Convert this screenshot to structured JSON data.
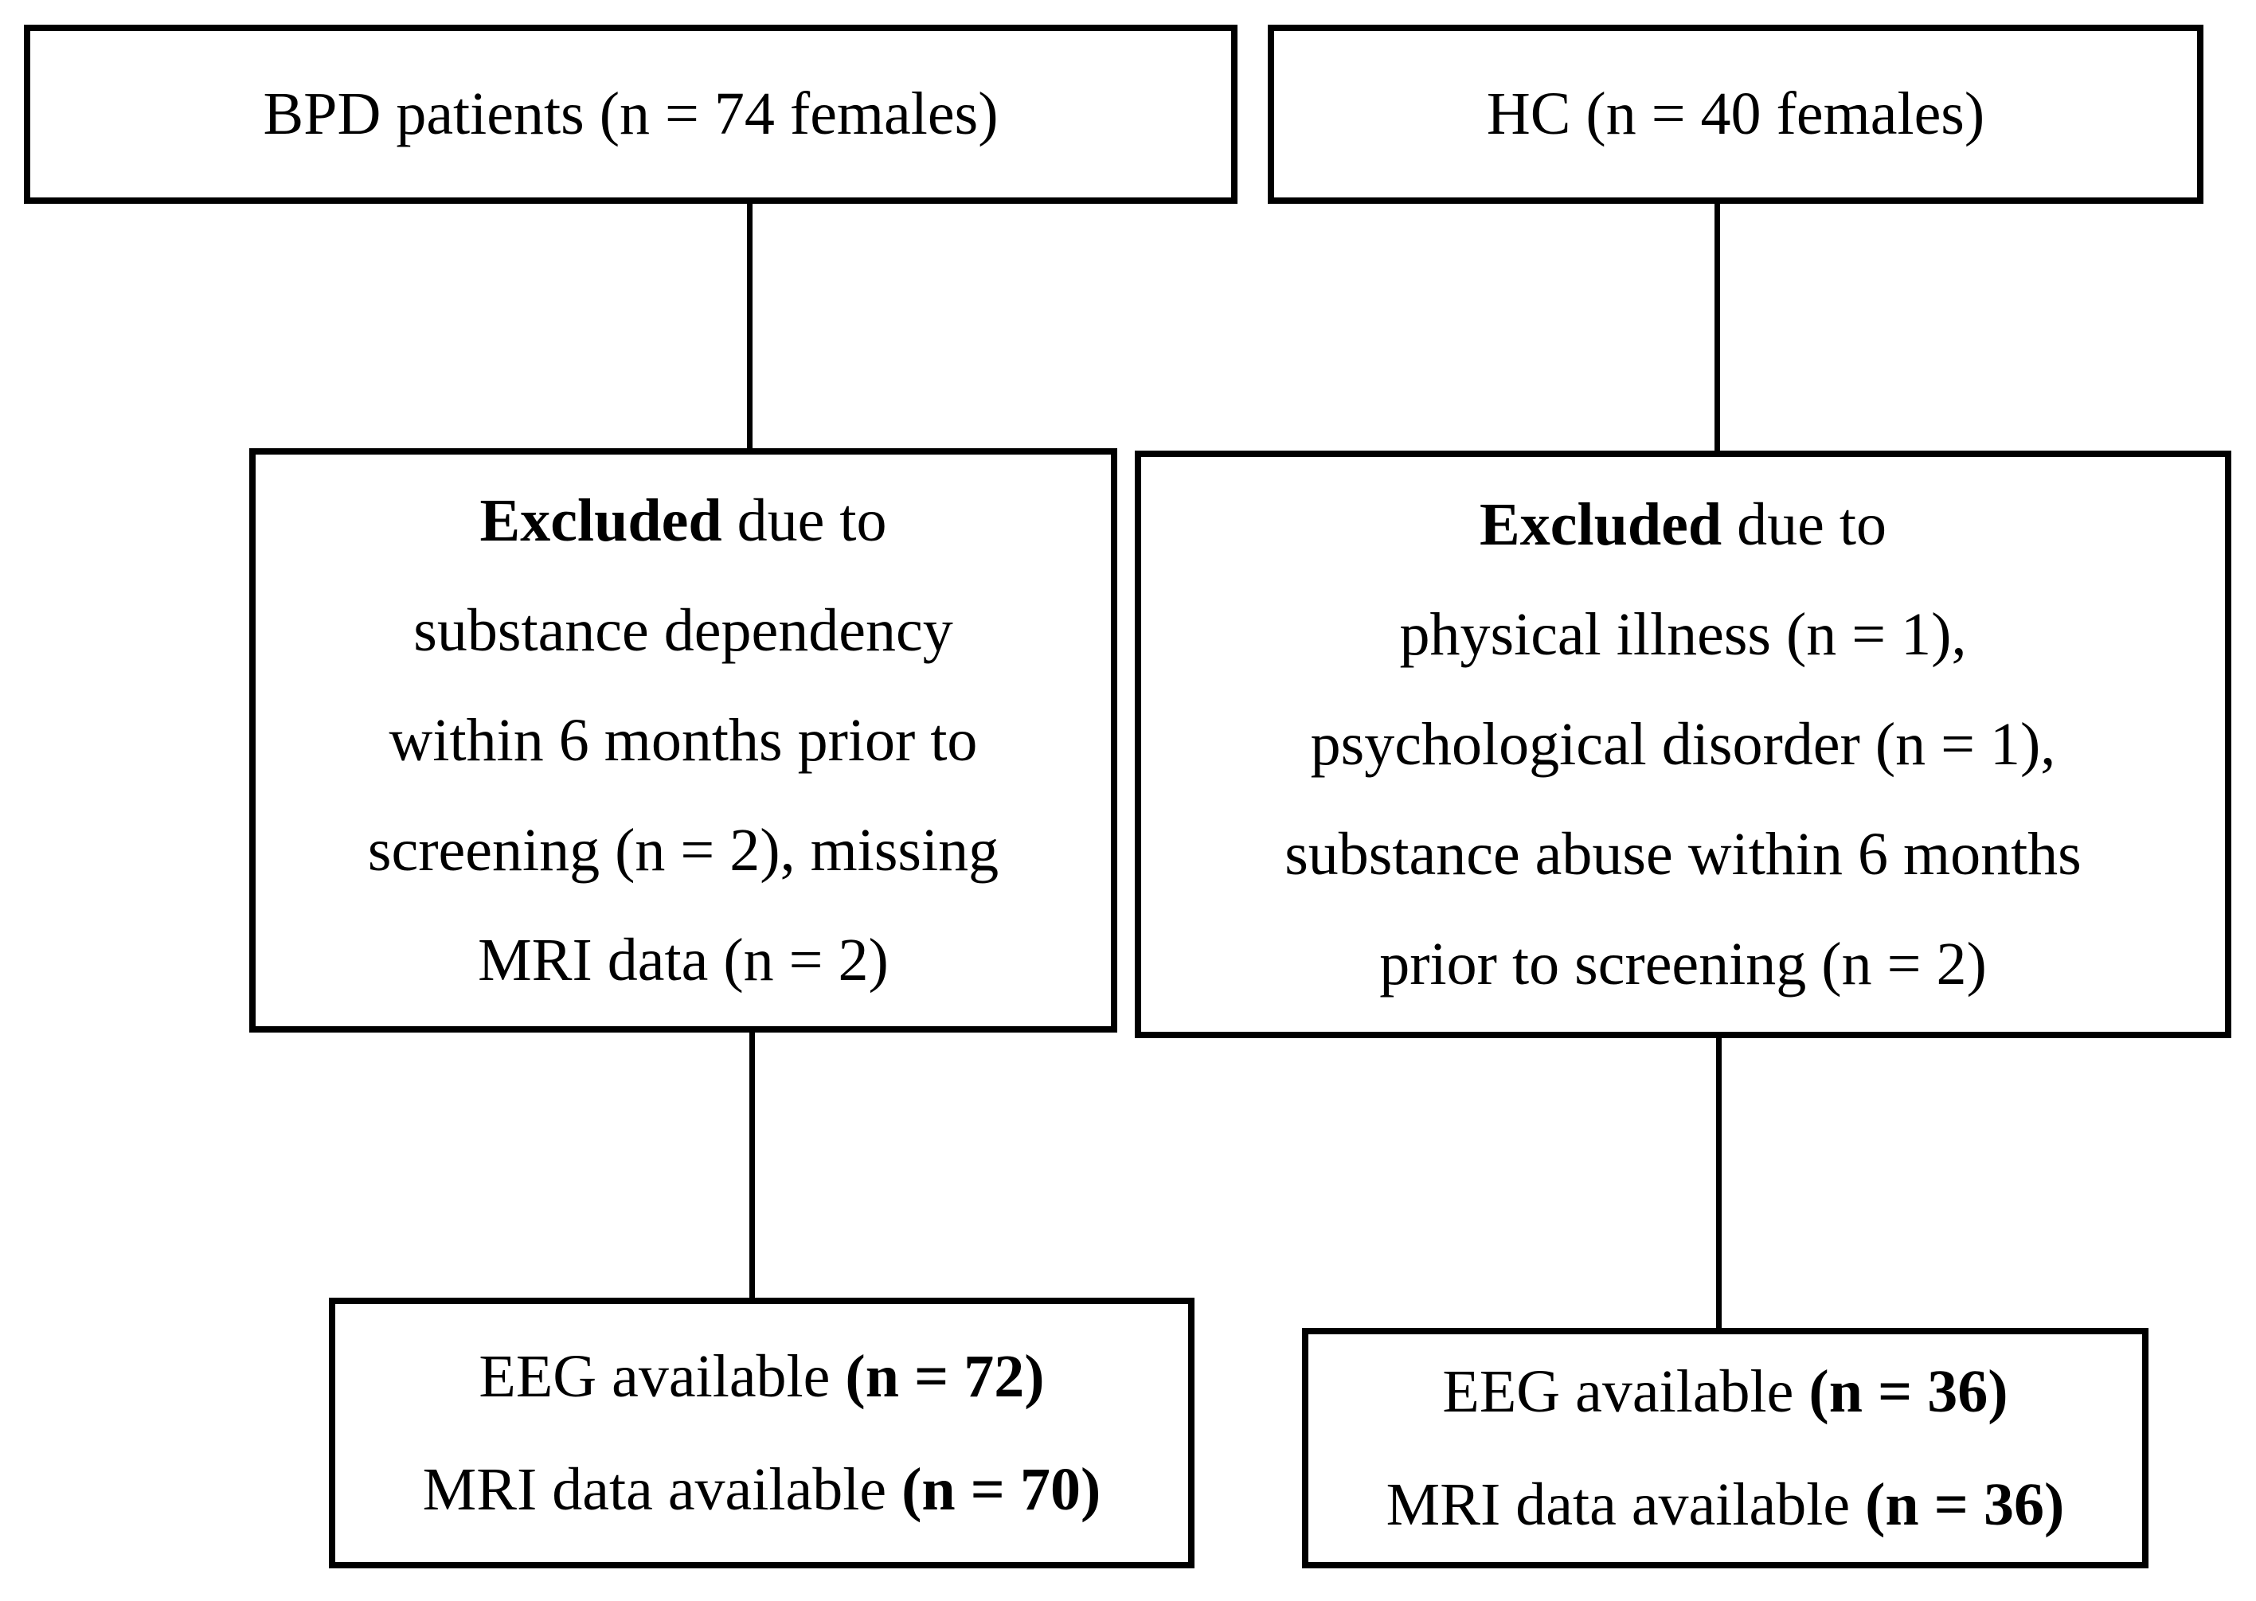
{
  "page": {
    "background_color": "#ffffff",
    "line_color": "#000000",
    "description": "Participant flow diagram: BPD patients and healthy controls, exclusions, and available EEG/MRI data"
  },
  "boxes": {
    "top_left": {
      "text": "BPD patients (n = 74 females)"
    },
    "top_right": {
      "text": "HC (n = 40 females)"
    },
    "mid_left": {
      "line1_bold": "Excluded",
      "line1_rest": " due to",
      "line2": "substance dependency",
      "line3": "within 6 months prior to",
      "line4": "screening (n = 2), missing",
      "line5": "MRI data (n = 2)"
    },
    "mid_right": {
      "line1_bold": "Excluded",
      "line1_rest": " due to",
      "line2": "physical illness (n = 1),",
      "line3": "psychological disorder (n = 1),",
      "line4": "substance abuse within 6 months",
      "line5": "prior to screening (n = 2)"
    },
    "bottom_left": {
      "line1_text": "EEG available ",
      "line1_bold": "(n = 72)",
      "line2_text": "MRI data available ",
      "line2_bold": "(n = 70)"
    },
    "bottom_right": {
      "line1_text": "EEG available ",
      "line1_bold": "(n = 36)",
      "line2_text": "MRI data available ",
      "line2_bold": "(n = 36)"
    }
  }
}
